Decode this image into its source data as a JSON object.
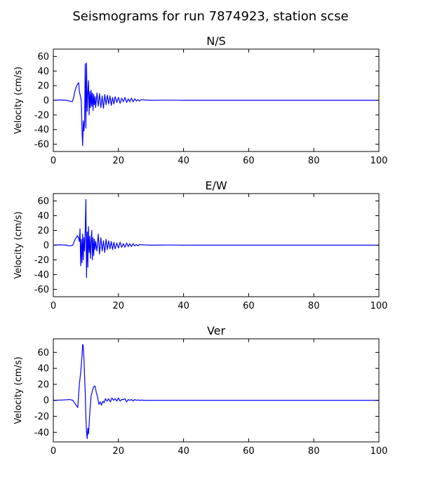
{
  "figure": {
    "title": "Seismograms for run 7874923, station scse"
  },
  "chart_data": [
    {
      "type": "line",
      "title": "N/S",
      "xlabel": "",
      "ylabel": "Velocity (cm/s)",
      "xlim": [
        0,
        100
      ],
      "ylim": [
        -70,
        70
      ],
      "xticks": [
        0,
        20,
        40,
        60,
        80,
        100
      ],
      "yticks": [
        -60,
        -40,
        -20,
        0,
        20,
        40,
        60
      ],
      "grid": false,
      "color": "#0000ff",
      "x": [
        0,
        2,
        4,
        5,
        5.8,
        6.2,
        6.6,
        7,
        7.4,
        7.8,
        8,
        8.2,
        8.4,
        8.6,
        8.8,
        9,
        9.2,
        9.4,
        9.6,
        9.8,
        10,
        10.2,
        10.4,
        10.6,
        10.8,
        11,
        11.2,
        11.4,
        11.6,
        11.8,
        12,
        12.2,
        12.4,
        12.6,
        12.8,
        13,
        13.4,
        13.8,
        14.2,
        14.6,
        15,
        15.4,
        15.8,
        16.2,
        16.6,
        17,
        17.4,
        17.8,
        18.2,
        18.6,
        19,
        19.5,
        20,
        20.5,
        21,
        21.5,
        22,
        22.5,
        23,
        23.5,
        24,
        24.5,
        25,
        25.5,
        26,
        26.5,
        27,
        28,
        30,
        35,
        40,
        50,
        60,
        70,
        80,
        90,
        100
      ],
      "y": [
        0,
        0.5,
        0,
        -1,
        -2,
        3,
        12,
        18,
        22,
        24,
        12,
        8,
        4,
        -2,
        -40,
        -62,
        -28,
        -42,
        -30,
        50,
        -38,
        51,
        -15,
        10,
        27,
        -20,
        12,
        -10,
        14,
        -8,
        10,
        -14,
        8,
        -6,
        5,
        -10,
        10,
        -8,
        9,
        -10,
        6,
        -11,
        8,
        -6,
        7,
        -5,
        6,
        -7,
        4,
        -5,
        5,
        -3,
        4,
        -4,
        3,
        -2,
        4,
        -3,
        2,
        -2,
        3,
        -2,
        2,
        -1,
        1,
        -1,
        1,
        0.5,
        0,
        0.2,
        0,
        0,
        0,
        0,
        0,
        0,
        0
      ]
    },
    {
      "type": "line",
      "title": "E/W",
      "xlabel": "",
      "ylabel": "Velocity (cm/s)",
      "xlim": [
        0,
        100
      ],
      "ylim": [
        -70,
        70
      ],
      "xticks": [
        0,
        20,
        40,
        60,
        80,
        100
      ],
      "yticks": [
        -60,
        -40,
        -20,
        0,
        20,
        40,
        60
      ],
      "grid": false,
      "color": "#0000ff",
      "x": [
        0,
        2,
        4,
        5,
        6,
        6.5,
        7,
        7.4,
        7.8,
        8,
        8.2,
        8.4,
        8.6,
        8.8,
        9,
        9.2,
        9.4,
        9.6,
        9.8,
        10,
        10.2,
        10.4,
        10.6,
        10.8,
        11,
        11.2,
        11.4,
        11.6,
        11.8,
        12,
        12.2,
        12.4,
        12.6,
        12.8,
        13,
        13.4,
        13.8,
        14.2,
        14.6,
        15,
        15.4,
        15.8,
        16.2,
        16.6,
        17,
        17.4,
        17.8,
        18.2,
        18.6,
        19,
        19.5,
        20,
        20.5,
        21,
        21.5,
        22,
        22.5,
        23,
        23.5,
        24,
        24.5,
        25,
        25.5,
        26,
        26.5,
        27,
        28,
        30,
        35,
        40,
        50,
        60,
        70,
        80,
        90,
        100
      ],
      "y": [
        0,
        0.5,
        0,
        -1,
        0,
        6,
        10,
        13,
        9,
        5,
        22,
        -28,
        8,
        -24,
        15,
        -20,
        10,
        -8,
        20,
        62,
        -44,
        18,
        -30,
        25,
        -10,
        12,
        -18,
        5,
        20,
        -20,
        10,
        -14,
        8,
        -6,
        5,
        -8,
        15,
        -12,
        10,
        -8,
        6,
        -10,
        8,
        -6,
        6,
        -5,
        5,
        -6,
        4,
        -5,
        3,
        -4,
        4,
        -3,
        2,
        -3,
        3,
        -2,
        2,
        -2,
        2,
        -1,
        1,
        -1,
        1,
        0.5,
        0.3,
        0,
        0.2,
        0,
        0,
        0,
        0,
        0,
        0,
        0
      ]
    },
    {
      "type": "line",
      "title": "Ver",
      "xlabel": "",
      "ylabel": "Velocity (cm/s)",
      "xlim": [
        0,
        100
      ],
      "ylim": [
        -52,
        77
      ],
      "xticks": [
        0,
        20,
        40,
        60,
        80,
        100
      ],
      "yticks": [
        -40,
        -20,
        0,
        20,
        40,
        60
      ],
      "grid": false,
      "color": "#0000ff",
      "x": [
        0,
        3,
        5,
        6,
        6.5,
        7,
        7.5,
        8,
        8.4,
        8.8,
        9,
        9.2,
        9.4,
        9.6,
        9.8,
        10,
        10.2,
        10.4,
        10.6,
        10.8,
        11,
        11.2,
        11.6,
        12,
        12.4,
        12.8,
        13,
        13.2,
        13.6,
        14,
        14.4,
        14.8,
        15.2,
        15.6,
        16,
        16.5,
        17,
        17.5,
        18,
        18.5,
        19,
        19.5,
        20,
        20.5,
        21,
        21.5,
        22,
        22.5,
        23,
        23.5,
        24,
        24.5,
        25,
        25.5,
        26,
        26.5,
        27,
        28,
        30,
        35,
        40,
        50,
        60,
        70,
        80,
        90,
        100
      ],
      "y": [
        0,
        0.5,
        1,
        0,
        -3,
        -6,
        -9,
        20,
        35,
        55,
        70,
        68,
        52,
        30,
        10,
        -20,
        -40,
        -48,
        -35,
        -42,
        -30,
        -15,
        5,
        12,
        17,
        18,
        14,
        10,
        4,
        -5,
        -2,
        -6,
        -1,
        -3,
        2,
        -1,
        2,
        -2,
        3,
        0,
        2,
        -1,
        3,
        -1,
        1,
        1,
        2,
        -2,
        1,
        0,
        1,
        -1,
        1,
        0,
        0.5,
        0,
        0.3,
        0,
        0,
        0,
        0,
        0,
        0,
        0,
        0,
        0,
        0
      ]
    }
  ]
}
